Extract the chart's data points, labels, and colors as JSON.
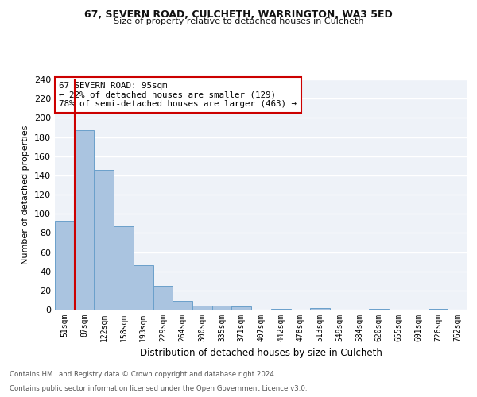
{
  "title1": "67, SEVERN ROAD, CULCHETH, WARRINGTON, WA3 5ED",
  "title2": "Size of property relative to detached houses in Culcheth",
  "xlabel": "Distribution of detached houses by size in Culcheth",
  "ylabel": "Number of detached properties",
  "footnote1": "Contains HM Land Registry data © Crown copyright and database right 2024.",
  "footnote2": "Contains public sector information licensed under the Open Government Licence v3.0.",
  "bin_labels": [
    "51sqm",
    "87sqm",
    "122sqm",
    "158sqm",
    "193sqm",
    "229sqm",
    "264sqm",
    "300sqm",
    "335sqm",
    "371sqm",
    "407sqm",
    "442sqm",
    "478sqm",
    "513sqm",
    "549sqm",
    "584sqm",
    "620sqm",
    "655sqm",
    "691sqm",
    "726sqm",
    "762sqm"
  ],
  "bar_heights": [
    93,
    187,
    146,
    87,
    46,
    25,
    9,
    4,
    4,
    3,
    0,
    1,
    0,
    2,
    0,
    0,
    1,
    0,
    0,
    1,
    0
  ],
  "bar_color": "#aac4e0",
  "bar_edge_color": "#6aa0cb",
  "annotation_title": "67 SEVERN ROAD: 95sqm",
  "annotation_line1": "← 22% of detached houses are smaller (129)",
  "annotation_line2": "78% of semi-detached houses are larger (463) →",
  "vline_color": "#cc0000",
  "annotation_box_edgecolor": "#cc0000",
  "ylim": [
    0,
    240
  ],
  "yticks": [
    0,
    20,
    40,
    60,
    80,
    100,
    120,
    140,
    160,
    180,
    200,
    220,
    240
  ],
  "background_color": "#eef2f8",
  "grid_color": "#ffffff"
}
